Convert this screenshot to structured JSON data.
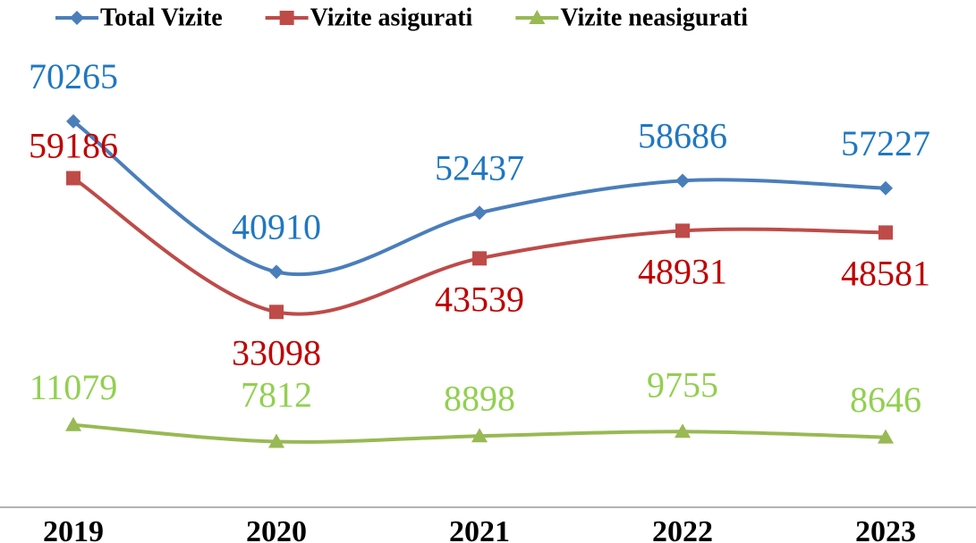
{
  "chart_data": {
    "type": "line",
    "categories": [
      "2019",
      "2020",
      "2021",
      "2022",
      "2023"
    ],
    "series": [
      {
        "name": "Total Vizite",
        "color": "#4a7ebb",
        "label_color": "#1f77c0",
        "marker": "diamond",
        "values": [
          70265,
          40910,
          52437,
          58686,
          57227
        ]
      },
      {
        "name": "Vizite asigurati",
        "color": "#be4b48",
        "label_color": "#c00000",
        "marker": "square",
        "values": [
          59186,
          33098,
          43539,
          48931,
          48581
        ]
      },
      {
        "name": "Vizite neasigurati",
        "color": "#98b954",
        "label_color": "#92d050",
        "marker": "triangle",
        "values": [
          11079,
          7812,
          8898,
          9755,
          8646
        ]
      }
    ],
    "ylim": [
      -5000,
      80000
    ],
    "smooth": true,
    "grid": false,
    "legend": "top"
  }
}
